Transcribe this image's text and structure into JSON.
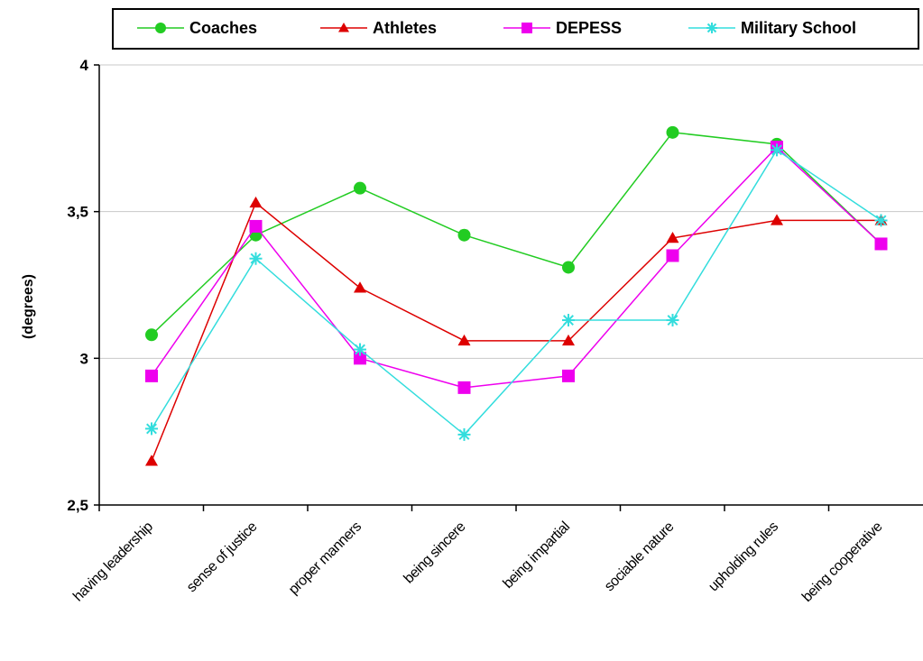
{
  "chart_data": {
    "type": "line",
    "title": "",
    "xlabel": "",
    "ylabel": "(degrees)",
    "ylim": [
      2.5,
      4
    ],
    "yticks": [
      2.5,
      3,
      3.5,
      4
    ],
    "ytick_labels": [
      "2,5",
      "3",
      "3,5",
      "4"
    ],
    "grid": "horizontal",
    "legend_position": "top",
    "categories": [
      "having leadership",
      "sense of justice",
      "proper manners",
      "being sincere",
      "being impartial",
      "sociable nature",
      "upholding rules",
      "being cooperative"
    ],
    "series": [
      {
        "name": "Coaches",
        "color": "#22cc22",
        "marker": "circle",
        "values": [
          3.08,
          3.42,
          3.58,
          3.42,
          3.31,
          3.77,
          3.73,
          3.39
        ]
      },
      {
        "name": "Athletes",
        "color": "#dd0000",
        "marker": "triangle",
        "values": [
          2.65,
          3.53,
          3.24,
          3.06,
          3.06,
          3.41,
          3.47,
          3.47
        ]
      },
      {
        "name": "DEPESS",
        "color": "#ee00ee",
        "marker": "square",
        "values": [
          2.94,
          3.45,
          3.0,
          2.9,
          2.94,
          3.35,
          3.72,
          3.39
        ]
      },
      {
        "name": "Military School",
        "color": "#33dddd",
        "marker": "star",
        "values": [
          2.76,
          3.34,
          3.03,
          2.74,
          3.13,
          3.13,
          3.71,
          3.47
        ]
      }
    ]
  }
}
